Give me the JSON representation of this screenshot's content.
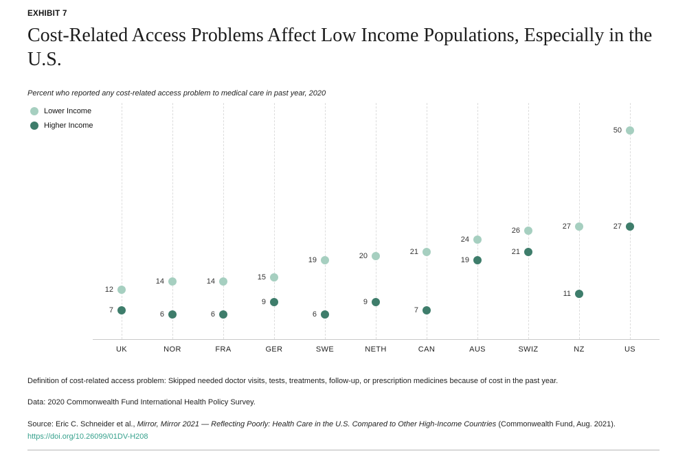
{
  "exhibit_label": "EXHIBIT 7",
  "title": "Cost-Related Access Problems Affect Low Income Populations, Especially in the U.S.",
  "subtitle": "Percent who reported any cost-related access problem to medical care in past year, 2020",
  "colors": {
    "lower_income": "#a6cfc0",
    "higher_income": "#3e7d6b",
    "link": "#35a08c"
  },
  "legend": [
    {
      "label": "Lower Income",
      "color": "#a6cfc0"
    },
    {
      "label": "Higher Income",
      "color": "#3e7d6b"
    }
  ],
  "chart_data": {
    "type": "scatter",
    "title": "Cost-Related Access Problems Affect Low Income Populations, Especially in the U.S.",
    "subtitle": "Percent who reported any cost-related access problem to medical care in past year, 2020",
    "categories": [
      "UK",
      "NOR",
      "FRA",
      "GER",
      "SWE",
      "NETH",
      "CAN",
      "AUS",
      "SWIZ",
      "NZ",
      "US"
    ],
    "series": [
      {
        "name": "Lower Income",
        "color": "#a6cfc0",
        "values": [
          12,
          14,
          14,
          15,
          19,
          20,
          21,
          24,
          26,
          27,
          50
        ]
      },
      {
        "name": "Higher Income",
        "color": "#3e7d6b",
        "values": [
          7,
          6,
          6,
          9,
          6,
          9,
          7,
          19,
          21,
          11,
          27
        ]
      }
    ],
    "xlabel": "",
    "ylabel": "Percent",
    "ylim": [
      0,
      56
    ],
    "grid": "vertical-dashed",
    "legend_position": "top-left",
    "value_labels": "left-of-dot"
  },
  "footnotes": {
    "definition": "Definition of cost-related access problem: Skipped needed doctor visits, tests, treatments, follow-up, or prescription medicines because of cost in the past year.",
    "data": "Data: 2020 Commonwealth Fund International Health Policy Survey.",
    "source_prefix": "Source: Eric C. Schneider et al., ",
    "source_title": "Mirror, Mirror 2021 — Reflecting Poorly: Health Care in the U.S. Compared to Other High-Income Countries",
    "source_suffix": " (Commonwealth Fund, Aug. 2021).",
    "link": "https://doi.org/10.26099/01DV-H208"
  }
}
